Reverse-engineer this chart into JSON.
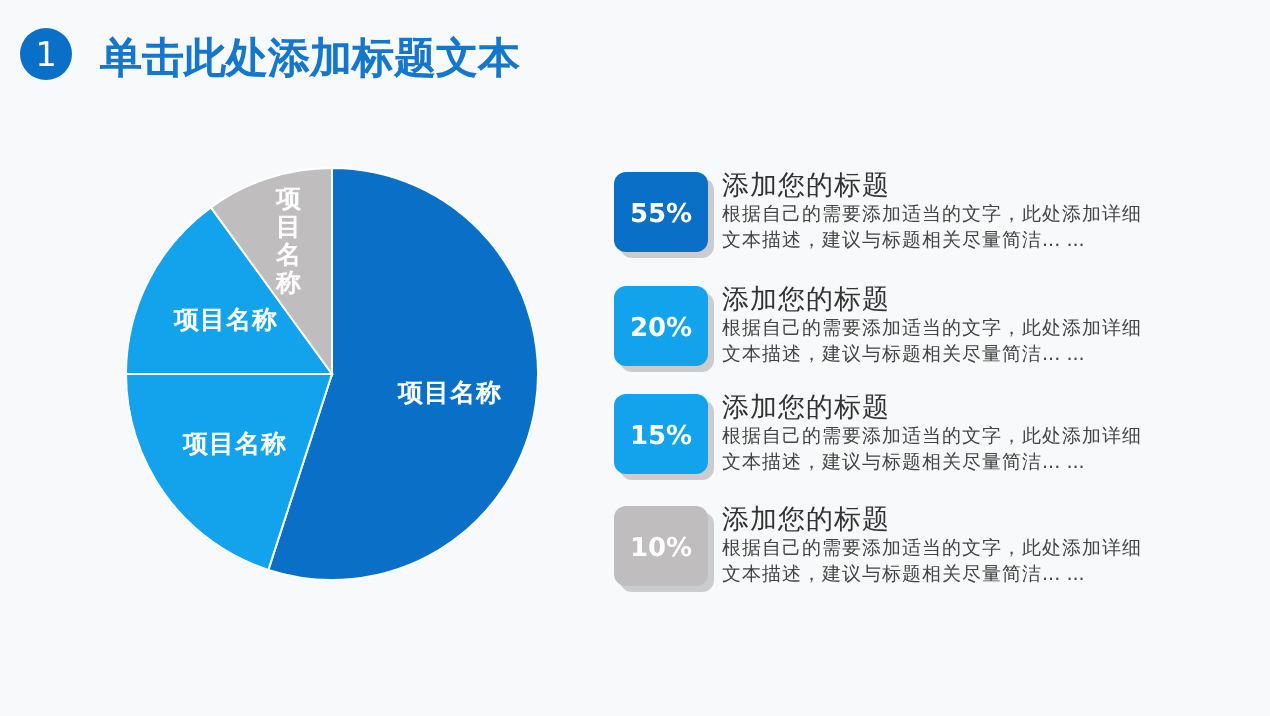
{
  "chart_data": {
    "type": "pie",
    "title": "单击此处添加标题文本",
    "categories": [
      "项目名称",
      "项目名称",
      "项目名称",
      "项目名称"
    ],
    "values": [
      55,
      20,
      15,
      10
    ],
    "colors": [
      "#0a6fc7",
      "#12a3ec",
      "#12a3ec",
      "#bfbdbd"
    ],
    "annotations": [
      "1",
      "55%",
      "添加您的标题",
      "根据自己的需要添加适当的文字，此处添加详细文本描述，建议与标题相关尽量简洁... ...",
      "20%",
      "添加您的标题",
      "根据自己的需要添加适当的文字，此处添加详细文本描述，建议与标题相关尽量简洁... ...",
      "15%",
      "添加您的标题",
      "根据自己的需要添加适当的文字，此处添加详细文本描述，建议与标题相关尽量简洁... ...",
      "10%",
      "添加您的标题",
      "根据自己的需要添加适当的文字，此处添加详细文本描述，建议与标题相关尽量简洁... ..."
    ]
  }
}
